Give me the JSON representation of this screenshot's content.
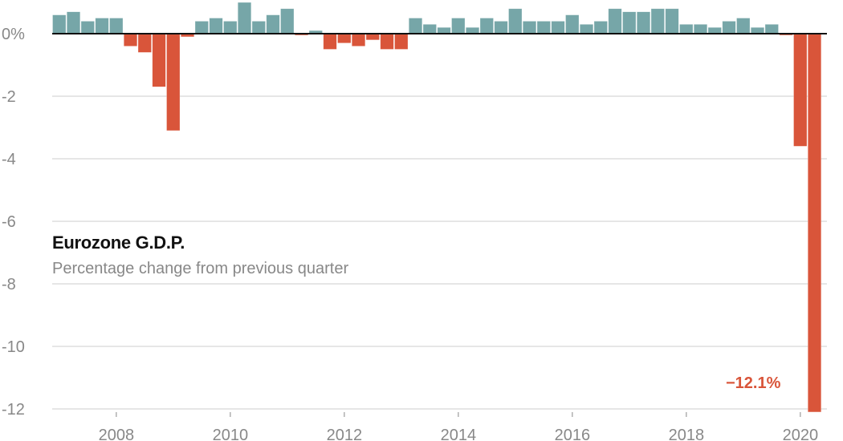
{
  "chart_data": {
    "type": "bar",
    "title": "Eurozone G.D.P.",
    "subtitle": "Percentage change from previous quarter",
    "annotation": "−12.1%",
    "x_start": "2007 Q1",
    "x_end": "2020 Q2",
    "frequency": "quarterly",
    "ylim": [
      -12,
      0.9
    ],
    "yticks": [
      0,
      -2,
      -4,
      -6,
      -8,
      -10,
      -12
    ],
    "ytick_labels": [
      "0%",
      "-2",
      "-4",
      "-6",
      "-8",
      "-10",
      "-12"
    ],
    "xtick_labels": [
      "2008",
      "2010",
      "2012",
      "2014",
      "2016",
      "2018",
      "2020"
    ],
    "grid": true,
    "colors": {
      "positive": "#76a6a8",
      "negative": "#d9553a",
      "annotation": "#d9553a"
    },
    "values": [
      0.6,
      0.7,
      0.4,
      0.5,
      0.5,
      -0.4,
      -0.6,
      -1.7,
      -3.1,
      -0.1,
      0.4,
      0.5,
      0.4,
      1.0,
      0.4,
      0.6,
      0.8,
      -0.05,
      0.1,
      -0.5,
      -0.3,
      -0.4,
      -0.2,
      -0.5,
      -0.5,
      0.5,
      0.3,
      0.2,
      0.5,
      0.2,
      0.5,
      0.4,
      0.8,
      0.4,
      0.4,
      0.4,
      0.6,
      0.3,
      0.4,
      0.8,
      0.7,
      0.7,
      0.8,
      0.8,
      0.3,
      0.3,
      0.2,
      0.4,
      0.5,
      0.2,
      0.3,
      -0.05,
      -3.6,
      -12.1
    ]
  }
}
